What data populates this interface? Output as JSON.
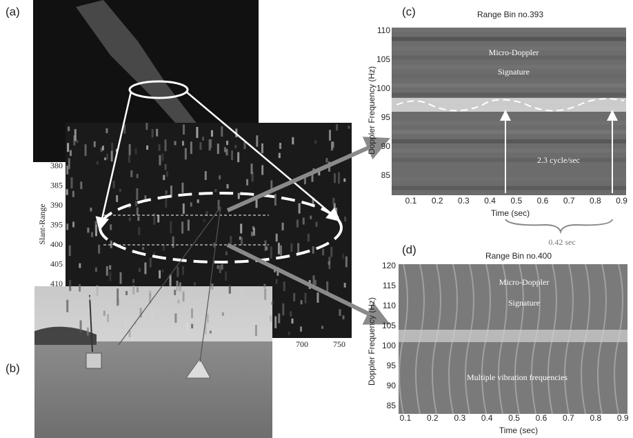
{
  "panels": {
    "a": {
      "label": "(a)",
      "y_axis_label": "Slant-Range",
      "y_ticks": [
        380,
        385,
        390,
        395,
        400,
        405,
        410
      ],
      "x_ticks": [
        700,
        750
      ]
    },
    "b": {
      "label": "(b)"
    },
    "c": {
      "label": "(c)",
      "title": "Range Bin no.393",
      "y_axis_label": "Doppler Frequency (Hz)",
      "x_axis_label": "Time (sec)",
      "y_ticks": [
        110,
        105,
        100,
        95,
        90,
        85
      ],
      "x_ticks": [
        0.1,
        0.2,
        0.3,
        0.4,
        0.5,
        0.6,
        0.7,
        0.8,
        0.9
      ],
      "signature": [
        "Micro-Doppler",
        "Signature"
      ],
      "rate": "2.3 cycle/sec",
      "period": "0.42 sec"
    },
    "d": {
      "label": "(d)",
      "title": "Range Bin no.400",
      "y_axis_label": "Doppler Frequency (Hz)",
      "x_axis_label": "Time (sec)",
      "y_ticks": [
        120,
        115,
        110,
        105,
        100,
        95,
        90,
        85
      ],
      "x_ticks": [
        0.1,
        0.2,
        0.3,
        0.4,
        0.5,
        0.6,
        0.7,
        0.8,
        0.9
      ],
      "signature": [
        "Micro-Doppler",
        "Signature"
      ],
      "note": "Multiple vibration frequencies"
    }
  }
}
